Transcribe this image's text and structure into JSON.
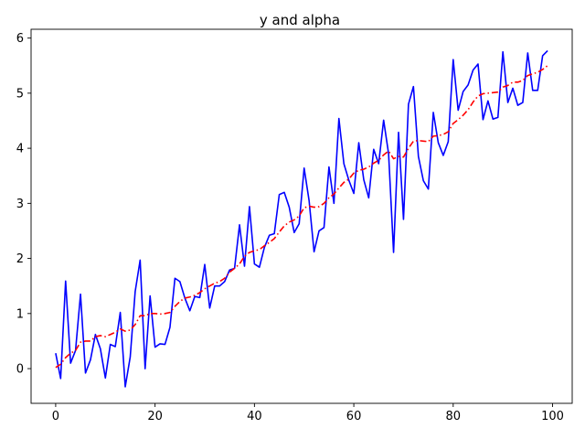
{
  "chart_data": {
    "type": "line",
    "title": "y and alpha",
    "xlabel": "",
    "ylabel": "",
    "xlim": [
      -4.95,
      103.95
    ],
    "ylim": [
      -0.63,
      6.16
    ],
    "xticks": [
      0,
      20,
      40,
      60,
      80,
      100
    ],
    "yticks": [
      0,
      1,
      2,
      3,
      4,
      5,
      6
    ],
    "grid": false,
    "legend": "none",
    "series": [
      {
        "color": "#0000ff",
        "style": "solid",
        "x": [
          0,
          1,
          2,
          3,
          4,
          5,
          6,
          7,
          8,
          9,
          10,
          11,
          12,
          13,
          14,
          15,
          16,
          17,
          18,
          19,
          20,
          21,
          22,
          23,
          24,
          25,
          26,
          27,
          28,
          29,
          30,
          31,
          32,
          33,
          34,
          35,
          36,
          37,
          38,
          39,
          40,
          41,
          42,
          43,
          44,
          45,
          46,
          47,
          48,
          49,
          50,
          51,
          52,
          53,
          54,
          55,
          56,
          57,
          58,
          59,
          60,
          61,
          62,
          63,
          64,
          65,
          66,
          67,
          68,
          69,
          70,
          71,
          72,
          73,
          74,
          75,
          76,
          77,
          78,
          79,
          80,
          81,
          82,
          83,
          84,
          85,
          86,
          87,
          88,
          89,
          90,
          91,
          92,
          93,
          94,
          95,
          96,
          97,
          98,
          99
        ],
        "values": [
          0.28,
          -0.18,
          1.59,
          0.1,
          0.33,
          1.35,
          -0.08,
          0.16,
          0.62,
          0.36,
          -0.17,
          0.44,
          0.4,
          1.02,
          -0.33,
          0.21,
          1.4,
          1.97,
          0.0,
          1.32,
          0.39,
          0.45,
          0.44,
          0.75,
          1.64,
          1.58,
          1.28,
          1.05,
          1.31,
          1.29,
          1.89,
          1.1,
          1.5,
          1.5,
          1.58,
          1.79,
          1.82,
          2.61,
          1.86,
          2.94,
          1.9,
          1.84,
          2.2,
          2.42,
          2.45,
          3.16,
          3.2,
          2.93,
          2.47,
          2.63,
          3.64,
          3.05,
          2.12,
          2.5,
          2.56,
          3.66,
          3.0,
          4.54,
          3.72,
          3.42,
          3.18,
          4.1,
          3.43,
          3.1,
          3.98,
          3.72,
          4.51,
          3.9,
          2.11,
          4.29,
          2.71,
          4.8,
          5.12,
          3.85,
          3.41,
          3.26,
          4.65,
          4.1,
          3.87,
          4.12,
          5.61,
          4.69,
          5.03,
          5.15,
          5.42,
          5.53,
          4.52,
          4.86,
          4.53,
          4.56,
          5.75,
          4.83,
          5.09,
          4.78,
          4.83,
          5.73,
          5.05,
          5.05,
          5.68,
          5.77
        ]
      },
      {
        "color": "#ff0000",
        "style": "dashdot",
        "x": [
          0,
          1,
          2,
          3,
          4,
          5,
          6,
          7,
          8,
          9,
          10,
          11,
          12,
          13,
          14,
          15,
          16,
          17,
          18,
          19,
          20,
          21,
          22,
          23,
          24,
          25,
          26,
          27,
          28,
          29,
          30,
          31,
          32,
          33,
          34,
          35,
          36,
          37,
          38,
          39,
          40,
          41,
          42,
          43,
          44,
          45,
          46,
          47,
          48,
          49,
          50,
          51,
          52,
          53,
          54,
          55,
          56,
          57,
          58,
          59,
          60,
          61,
          62,
          63,
          64,
          65,
          66,
          67,
          68,
          69,
          70,
          71,
          72,
          73,
          74,
          75,
          76,
          77,
          78,
          79,
          80,
          81,
          82,
          83,
          84,
          85,
          86,
          87,
          88,
          89,
          90,
          91,
          92,
          93,
          94,
          95,
          96,
          97,
          98,
          99
        ],
        "values": [
          0.02,
          0.08,
          0.2,
          0.28,
          0.33,
          0.48,
          0.5,
          0.5,
          0.58,
          0.6,
          0.58,
          0.62,
          0.66,
          0.72,
          0.68,
          0.7,
          0.8,
          0.96,
          0.96,
          1.0,
          1.0,
          0.99,
          1.0,
          1.02,
          1.13,
          1.22,
          1.28,
          1.3,
          1.33,
          1.38,
          1.45,
          1.5,
          1.55,
          1.58,
          1.64,
          1.75,
          1.82,
          1.9,
          2.04,
          2.11,
          2.14,
          2.16,
          2.23,
          2.29,
          2.36,
          2.48,
          2.59,
          2.66,
          2.7,
          2.77,
          2.92,
          2.95,
          2.93,
          2.94,
          3.0,
          3.1,
          3.17,
          3.28,
          3.38,
          3.44,
          3.55,
          3.6,
          3.62,
          3.66,
          3.73,
          3.78,
          3.88,
          3.95,
          3.81,
          3.85,
          3.84,
          4.0,
          4.13,
          4.14,
          4.13,
          4.12,
          4.22,
          4.23,
          4.25,
          4.3,
          4.45,
          4.52,
          4.6,
          4.7,
          4.84,
          4.95,
          4.99,
          5.0,
          5.01,
          5.02,
          5.11,
          5.14,
          5.2,
          5.2,
          5.23,
          5.32,
          5.35,
          5.38,
          5.43,
          5.5
        ]
      }
    ]
  }
}
